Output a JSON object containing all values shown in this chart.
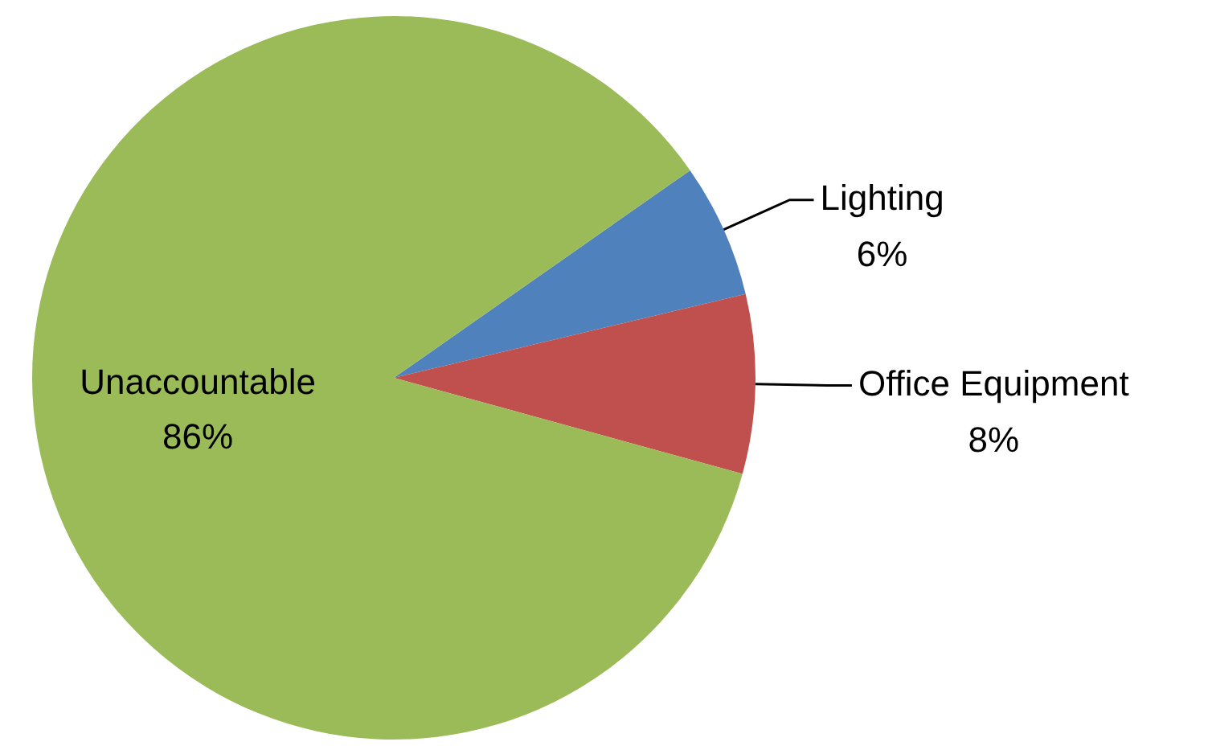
{
  "chart_data": {
    "type": "pie",
    "categories": [
      "Lighting",
      "Office Equipment",
      "Unaccountable"
    ],
    "values": [
      6,
      8,
      86
    ],
    "value_labels": [
      "6%",
      "8%",
      "86%"
    ],
    "colors": [
      "#4f81bd",
      "#c0504d",
      "#9bbb59"
    ],
    "legend": false
  }
}
